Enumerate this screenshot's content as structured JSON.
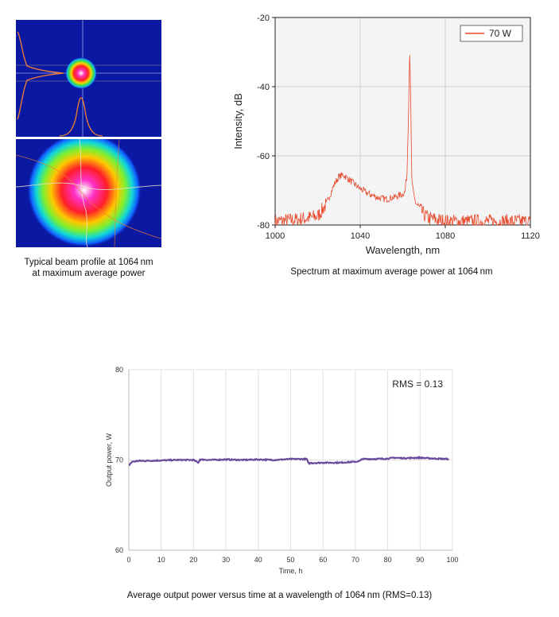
{
  "beam_profile": {
    "caption_line1": "Typical beam profile at 1064 nm",
    "caption_line2": "at maximum average power"
  },
  "spectrum": {
    "caption": "Spectrum at maximum average power at 1064 nm"
  },
  "stability": {
    "caption": "Average output power versus time at a wavelength of 1064 nm (RMS=0.13)",
    "annotation": "RMS = 0.13"
  },
  "chart_data": [
    {
      "type": "line",
      "title": "",
      "xlabel": "Wavelength, nm",
      "ylabel": "Intensity, dB",
      "xlim": [
        1000,
        1120
      ],
      "ylim": [
        -80,
        -20
      ],
      "xticks": [
        1000,
        1040,
        1080,
        1120
      ],
      "yticks": [
        -20,
        -40,
        -60,
        -80
      ],
      "grid": true,
      "legend": "top-right",
      "color": "#e8492b",
      "series": [
        {
          "name": "70 W",
          "x": [
            1000,
            1010,
            1020,
            1024,
            1026,
            1028,
            1030,
            1032,
            1036,
            1040,
            1044,
            1048,
            1052,
            1056,
            1058,
            1060,
            1061,
            1062,
            1062.8,
            1063.3,
            1063.8,
            1064.2,
            1065,
            1066,
            1068,
            1070,
            1072,
            1076,
            1080,
            1090,
            1100,
            1110,
            1120
          ],
          "y": [
            -79,
            -78.5,
            -77.5,
            -74,
            -71,
            -68,
            -66,
            -65.5,
            -67.5,
            -69.5,
            -71,
            -72,
            -72.5,
            -72,
            -71.5,
            -71,
            -70.5,
            -65,
            -45,
            -29,
            -45,
            -66,
            -71,
            -73.5,
            -75.5,
            -77,
            -78,
            -78.5,
            -79,
            -79,
            -79,
            -79,
            -79
          ]
        }
      ]
    },
    {
      "type": "line",
      "title": "",
      "xlabel": "Time, h",
      "ylabel": "Output power, W",
      "xlim": [
        0,
        100
      ],
      "ylim": [
        60,
        80
      ],
      "xticks": [
        0,
        10,
        20,
        30,
        40,
        50,
        60,
        70,
        80,
        90,
        100
      ],
      "yticks": [
        60,
        70,
        80
      ],
      "grid": true,
      "color": "#6a4a9c",
      "series": [
        {
          "x": [
            0,
            1,
            3,
            5,
            10,
            15,
            20,
            21.5,
            22,
            25,
            30,
            35,
            40,
            45,
            50,
            55,
            55.5,
            56,
            60,
            65,
            70,
            71.5,
            72,
            75,
            80,
            82,
            85,
            90,
            92,
            95,
            99
          ],
          "y": [
            69.4,
            69.8,
            69.9,
            69.9,
            69.95,
            70.0,
            70.0,
            69.7,
            70.05,
            70.0,
            70.05,
            70.0,
            70.05,
            70.0,
            70.1,
            70.1,
            69.6,
            69.65,
            69.7,
            69.7,
            69.8,
            69.9,
            70.1,
            70.1,
            70.15,
            70.25,
            70.2,
            70.25,
            70.2,
            70.15,
            70.1
          ]
        }
      ]
    }
  ]
}
